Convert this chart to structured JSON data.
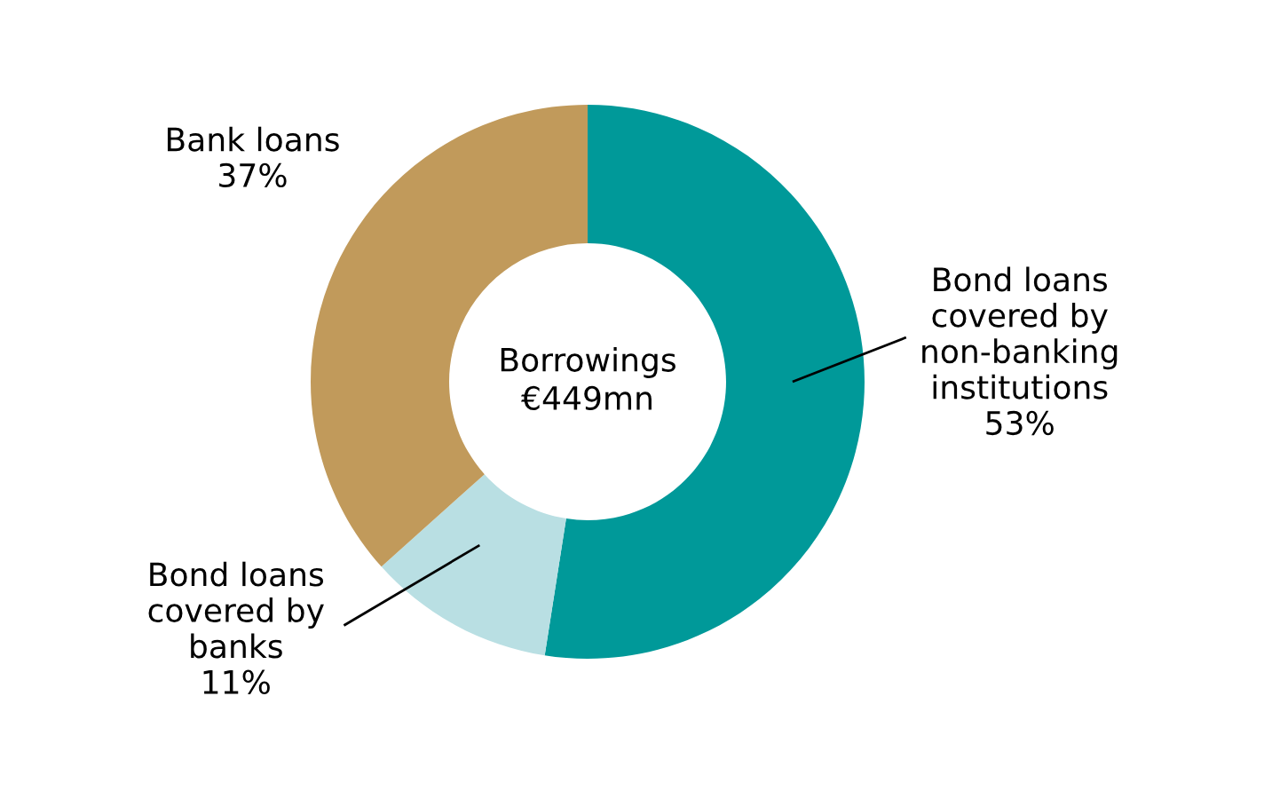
{
  "chart_data": {
    "type": "donut",
    "categories": [
      "Bond loans\ncovered by\nnon-banking\ninstitutions",
      "Bond loans\ncovered by\nbanks",
      "Bank loans"
    ],
    "values": [
      53,
      11,
      37
    ],
    "value_labels": [
      "53%",
      "11%",
      "37%"
    ],
    "colors": [
      "#009999",
      "#b9dfe3",
      "#c19a5b"
    ],
    "annotations": [
      "Borrowings\n€449mn"
    ],
    "legend": false
  }
}
